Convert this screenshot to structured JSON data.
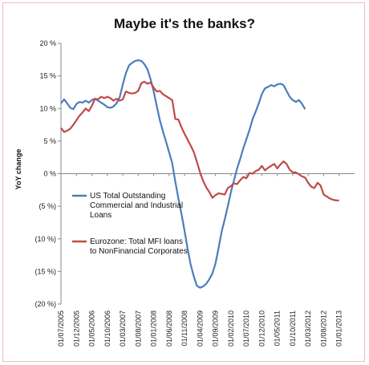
{
  "chart_data": {
    "type": "line",
    "title": "Maybe it's the banks?",
    "ylabel": "YoY change",
    "xlabel": "",
    "ylim": [
      -20,
      20
    ],
    "y_ticks": [
      20,
      15,
      10,
      5,
      0,
      -5,
      -10,
      -15,
      -20
    ],
    "y_tick_labels": [
      "20 %",
      "15 %",
      "10 %",
      "5 %",
      "0 %",
      "(5 %)",
      "(10 %)",
      "(15 %)",
      "(20 %)"
    ],
    "grid": false,
    "zero_line": true,
    "legend_position": "lower-left",
    "x_tick_labels": [
      "01/07/2005",
      "01/12/2005",
      "01/05/2006",
      "01/10/2006",
      "01/03/2007",
      "01/08/2007",
      "01/01/2008",
      "01/06/2008",
      "01/11/2008",
      "01/04/2009",
      "01/09/2009",
      "01/02/2010",
      "01/07/2010",
      "01/12/2010",
      "01/05/2011",
      "01/10/2011",
      "01/03/2012",
      "01/08/2012",
      "01/01/2013"
    ],
    "x_tick_index": [
      0,
      5,
      10,
      15,
      20,
      25,
      30,
      35,
      40,
      45,
      50,
      55,
      60,
      65,
      70,
      75,
      80,
      85,
      90
    ],
    "x_count": 96,
    "series": [
      {
        "name": "US Total Outstanding Commercial and Industrial Loans",
        "color": "#4a7ebb",
        "values": [
          10.8,
          11.4,
          10.8,
          10.1,
          9.9,
          10.7,
          11.0,
          10.9,
          11.2,
          10.9,
          11.3,
          11.5,
          11.2,
          10.9,
          10.6,
          10.2,
          10.1,
          10.3,
          10.8,
          11.7,
          13.7,
          15.4,
          16.6,
          17.0,
          17.3,
          17.4,
          17.3,
          16.8,
          16.0,
          14.5,
          12.6,
          10.4,
          8.2,
          6.5,
          4.9,
          3.3,
          1.6,
          -1.2,
          -3.8,
          -6.2,
          -8.8,
          -11.6,
          -14.0,
          -15.8,
          -17.2,
          -17.5,
          -17.3,
          -16.9,
          -16.2,
          -15.3,
          -13.8,
          -11.4,
          -8.9,
          -7.0,
          -5.0,
          -2.8,
          -1.0,
          0.8,
          2.3,
          3.9,
          5.3,
          6.7,
          8.4,
          9.5,
          10.8,
          12.2,
          13.1,
          13.3,
          13.6,
          13.4,
          13.7,
          13.8,
          13.6,
          12.7,
          11.8,
          11.3,
          11.0,
          11.3,
          10.7,
          9.9
        ]
      },
      {
        "name": "Eurozone: Total MFI loans to NonFinancial Corporates",
        "color": "#be4b48",
        "values": [
          7.0,
          6.4,
          6.6,
          6.9,
          7.5,
          8.2,
          8.9,
          9.4,
          10.0,
          9.6,
          10.4,
          11.5,
          11.4,
          11.8,
          11.6,
          11.8,
          11.6,
          11.2,
          11.5,
          11.2,
          11.4,
          12.6,
          12.4,
          12.3,
          12.4,
          12.7,
          13.9,
          14.1,
          13.8,
          14.0,
          13.2,
          12.6,
          12.7,
          12.2,
          11.9,
          11.6,
          11.3,
          8.4,
          8.3,
          7.1,
          6.1,
          5.2,
          4.3,
          3.3,
          1.8,
          0.2,
          -1.1,
          -2.1,
          -2.8,
          -3.7,
          -3.3,
          -3.0,
          -3.1,
          -3.2,
          -2.2,
          -1.9,
          -1.5,
          -1.6,
          -1.0,
          -0.5,
          -0.7,
          0.1,
          0.0,
          0.4,
          0.6,
          1.2,
          0.5,
          0.9,
          1.2,
          1.5,
          0.8,
          1.4,
          1.9,
          1.5,
          0.6,
          0.2,
          0.2,
          -0.1,
          -0.4,
          -0.6,
          -1.4,
          -2.0,
          -2.2,
          -1.4,
          -1.8,
          -3.2,
          -3.5,
          -3.8,
          -4.0,
          -4.1,
          -4.1
        ]
      }
    ],
    "legend": [
      {
        "lines": [
          "US Total Outstanding",
          "Commercial and Industrial",
          "Loans"
        ],
        "color": "#4a7ebb"
      },
      {
        "lines": [
          "Eurozone: Total MFI loans",
          "to NonFinancial Corporates"
        ],
        "color": "#be4b48"
      }
    ]
  }
}
